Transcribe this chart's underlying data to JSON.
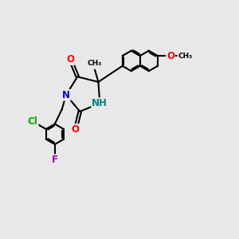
{
  "bg_color": "#e8e8e8",
  "bond_color": "#000000",
  "bond_width": 1.5,
  "atom_colors": {
    "O": "#ff0000",
    "N": "#0000cc",
    "NH": "#008080",
    "Cl": "#00aa00",
    "F": "#aa00aa",
    "C": "#000000"
  },
  "font_size": 8.5,
  "title": ""
}
